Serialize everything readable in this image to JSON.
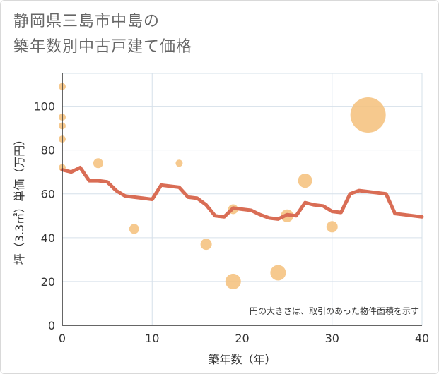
{
  "title_line1": "静岡県三島市中島の",
  "title_line2": "築年数別中古戸建て価格",
  "chart_data": {
    "type": "scatter+line",
    "title": "静岡県三島市中島の築年数別中古戸建て価格",
    "xlabel": "築年数（年）",
    "ylabel": "坪（3.3㎡）単価（万円）",
    "xlim": [
      0,
      40
    ],
    "ylim": [
      0,
      115
    ],
    "x_ticks": [
      0,
      10,
      20,
      30,
      40
    ],
    "y_ticks": [
      0,
      20,
      40,
      60,
      80,
      100
    ],
    "grid": true,
    "note": "円の大きさは、取引のあった物件面積を示す",
    "colors": {
      "bubble": "#f5c07a",
      "line": "#d96d55",
      "grid": "#d6e0ea",
      "axis": "#333333"
    },
    "scatter": [
      {
        "x": 0,
        "y": 109,
        "size": 5
      },
      {
        "x": 0,
        "y": 95,
        "size": 5
      },
      {
        "x": 0,
        "y": 91,
        "size": 5
      },
      {
        "x": 0,
        "y": 85,
        "size": 5
      },
      {
        "x": 0,
        "y": 72,
        "size": 5
      },
      {
        "x": 4,
        "y": 74,
        "size": 7
      },
      {
        "x": 8,
        "y": 44,
        "size": 7
      },
      {
        "x": 13,
        "y": 74,
        "size": 5
      },
      {
        "x": 16,
        "y": 37,
        "size": 8
      },
      {
        "x": 19,
        "y": 53,
        "size": 7
      },
      {
        "x": 19,
        "y": 20,
        "size": 11
      },
      {
        "x": 24,
        "y": 24,
        "size": 11
      },
      {
        "x": 25,
        "y": 50,
        "size": 9
      },
      {
        "x": 27,
        "y": 66,
        "size": 10
      },
      {
        "x": 30,
        "y": 45,
        "size": 8
      },
      {
        "x": 34,
        "y": 96,
        "size": 25
      }
    ],
    "line": {
      "x": [
        0,
        1,
        2,
        3,
        4,
        5,
        6,
        7,
        8,
        9,
        10,
        11,
        12,
        13,
        14,
        15,
        16,
        17,
        18,
        19,
        20,
        21,
        22,
        23,
        24,
        25,
        26,
        27,
        28,
        29,
        30,
        31,
        32,
        33,
        34,
        35,
        36,
        37,
        38,
        39,
        40
      ],
      "y": [
        71,
        70,
        72,
        66,
        66,
        65.5,
        61.5,
        59,
        58.5,
        58,
        57.5,
        64,
        63.5,
        63,
        58.5,
        58,
        55,
        50,
        49.5,
        53.5,
        53,
        52.5,
        50.5,
        49,
        48.5,
        50.5,
        50,
        56,
        55,
        54.5,
        52,
        51.5,
        60,
        61.5,
        61,
        60.5,
        60,
        51,
        50.5,
        50,
        49.5
      ]
    }
  }
}
